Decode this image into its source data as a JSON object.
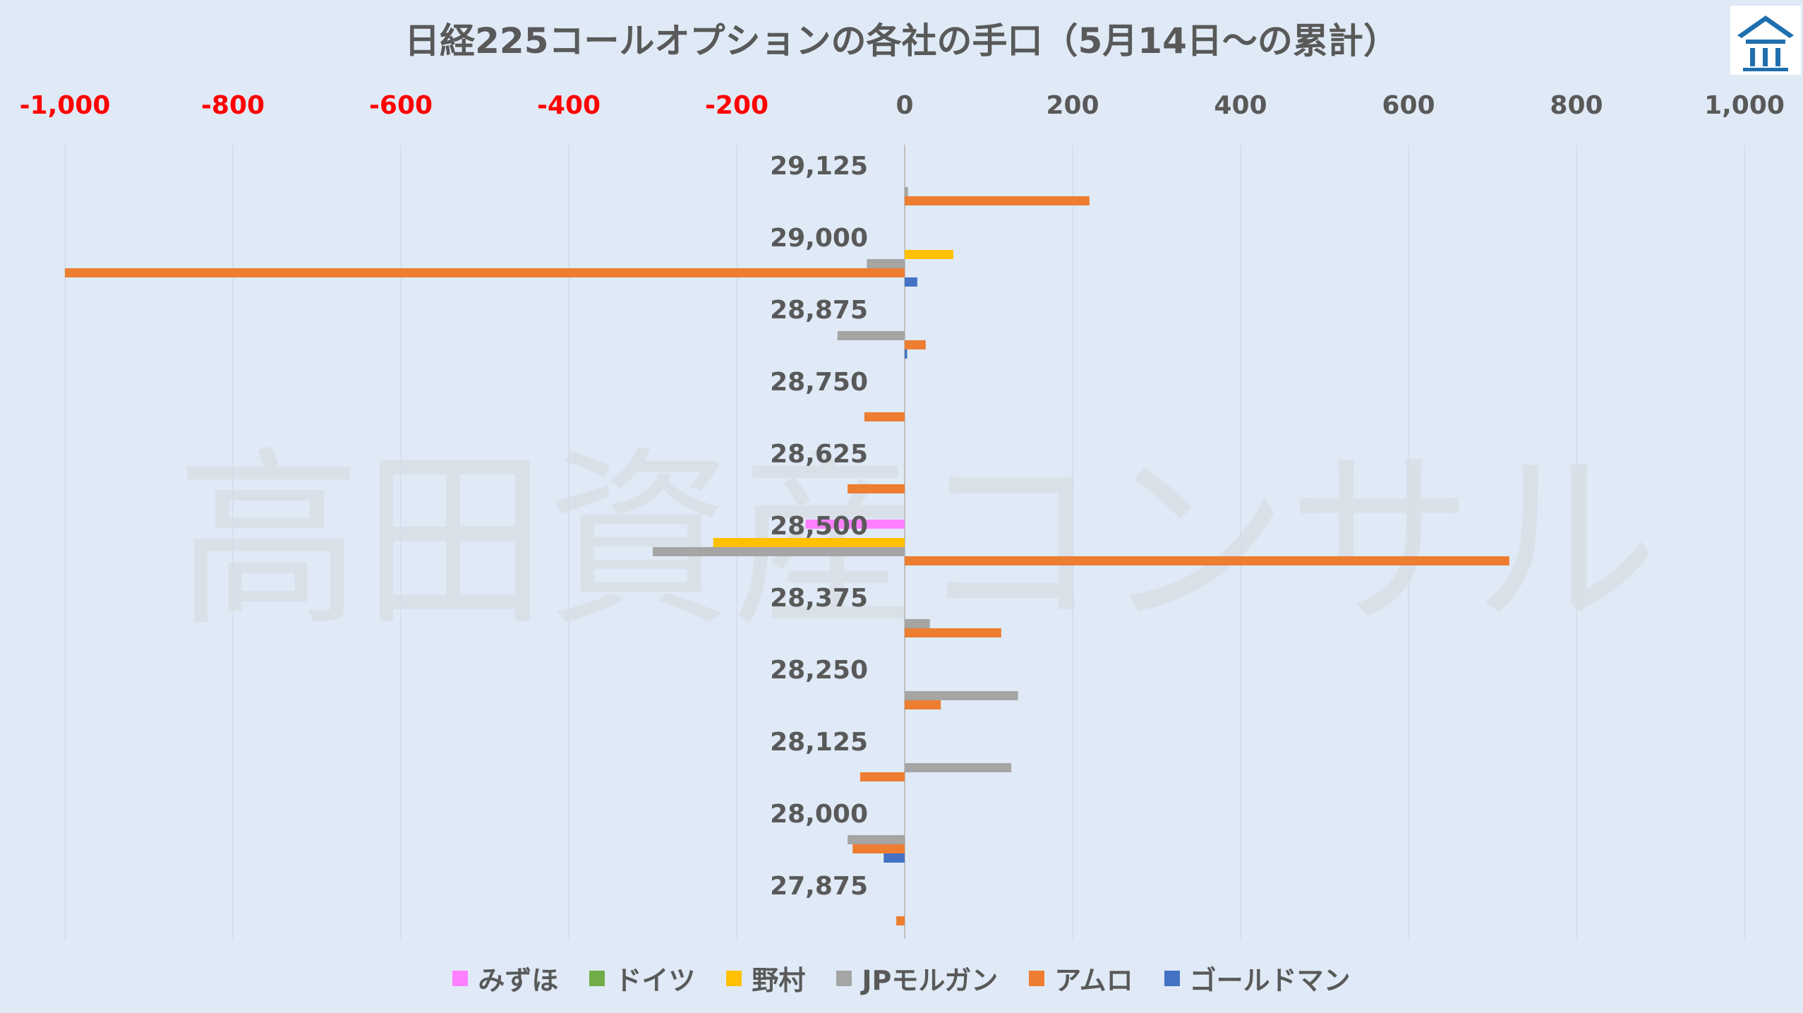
{
  "chart_data": {
    "type": "bar",
    "orientation": "horizontal",
    "title": "日経225コールオプションの各社の手口（5月14日～の累計）",
    "categories": [
      "29,125",
      "29,000",
      "28,875",
      "28,750",
      "28,625",
      "28,500",
      "28,375",
      "28,250",
      "28,125",
      "28,000",
      "27,875"
    ],
    "xlim": [
      -1000,
      1000
    ],
    "x_ticks": [
      -1000,
      -800,
      -600,
      -400,
      -200,
      0,
      200,
      400,
      600,
      800,
      1000
    ],
    "x_tick_labels": [
      "-1,000",
      "-800",
      "-600",
      "-400",
      "-200",
      "0",
      "200",
      "400",
      "600",
      "800",
      "1,000"
    ],
    "x_axis_position": "top",
    "negative_tick_color": "#ff0000",
    "grid": true,
    "legend_position": "bottom",
    "series": [
      {
        "name": "みずほ",
        "color": "#ff7fff",
        "values": [
          0,
          0,
          0,
          0,
          0,
          -118,
          0,
          0,
          0,
          0,
          0
        ]
      },
      {
        "name": "ドイツ",
        "color": "#70ad47",
        "values": [
          0,
          0,
          0,
          0,
          0,
          0,
          0,
          0,
          0,
          0,
          0
        ]
      },
      {
        "name": "野村",
        "color": "#ffc000",
        "values": [
          0,
          58,
          0,
          0,
          0,
          -228,
          0,
          0,
          0,
          0,
          0
        ]
      },
      {
        "name": "JPモルガン",
        "color": "#a5a5a5",
        "values": [
          4,
          -45,
          -80,
          0,
          0,
          -300,
          30,
          135,
          127,
          -68,
          0
        ]
      },
      {
        "name": "アムロ",
        "color": "#ed7d31",
        "values": [
          220,
          -1000,
          25,
          -48,
          -68,
          720,
          115,
          43,
          -53,
          -62,
          -10
        ]
      },
      {
        "name": "ゴールドマン",
        "color": "#4472c4",
        "values": [
          0,
          15,
          3,
          0,
          0,
          0,
          0,
          0,
          0,
          -25,
          0
        ]
      }
    ]
  },
  "watermark": "高田資産コンサル"
}
